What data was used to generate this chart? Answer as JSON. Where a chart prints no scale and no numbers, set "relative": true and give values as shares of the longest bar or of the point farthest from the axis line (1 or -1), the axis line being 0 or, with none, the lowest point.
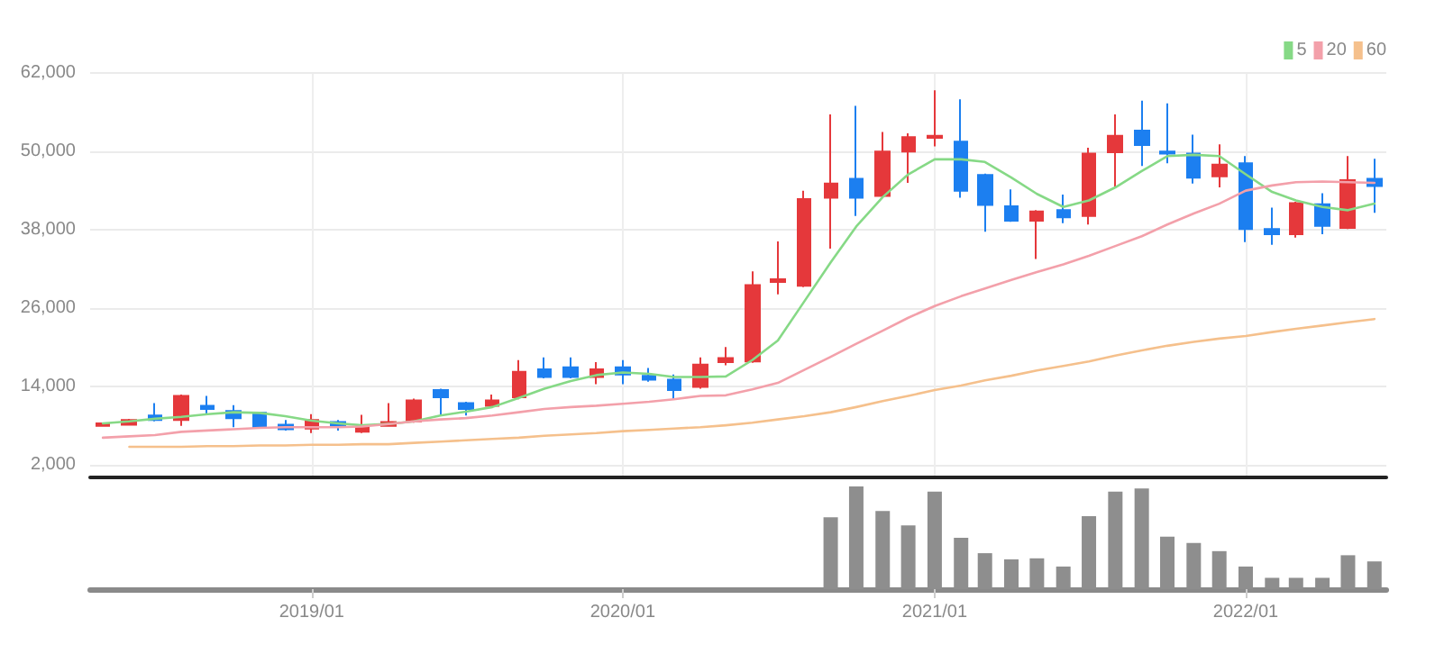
{
  "chart_data": [
    {
      "type": "candlestick",
      "x": [
        "2018-05",
        "2018-06",
        "2018-07",
        "2018-08",
        "2018-09",
        "2018-10",
        "2018-11",
        "2018-12",
        "2019-01",
        "2019-02",
        "2019-03",
        "2019-04",
        "2019-05",
        "2019-06",
        "2019-07",
        "2019-08",
        "2019-09",
        "2019-10",
        "2019-11",
        "2019-12",
        "2020-01",
        "2020-02",
        "2020-03",
        "2020-04",
        "2020-05",
        "2020-06",
        "2020-07",
        "2020-08",
        "2020-09",
        "2020-10",
        "2020-11",
        "2020-12",
        "2021-01",
        "2021-02",
        "2021-03",
        "2021-04",
        "2021-05",
        "2021-06",
        "2021-07",
        "2021-08",
        "2021-09",
        "2021-10",
        "2021-11",
        "2021-12",
        "2022-01",
        "2022-02",
        "2022-03",
        "2022-04",
        "2022-05",
        "2022-06"
      ],
      "ohlc": [
        [
          7900,
          8400,
          7800,
          8300
        ],
        [
          8100,
          9000,
          8000,
          8800
        ],
        [
          9500,
          11400,
          8600,
          8800
        ],
        [
          8800,
          12700,
          7900,
          12500
        ],
        [
          11000,
          12500,
          9700,
          10500
        ],
        [
          10200,
          11100,
          7700,
          9100
        ],
        [
          9900,
          10000,
          7600,
          7700
        ],
        [
          8100,
          8800,
          7200,
          7400
        ],
        [
          7500,
          9700,
          6800,
          8800
        ],
        [
          8500,
          8800,
          7200,
          7800
        ],
        [
          7000,
          9600,
          6800,
          7600
        ],
        [
          7900,
          11400,
          7800,
          8500
        ],
        [
          8600,
          12100,
          8400,
          11800
        ],
        [
          13400,
          13600,
          9500,
          12300
        ],
        [
          11400,
          11600,
          9500,
          10500
        ],
        [
          11000,
          12700,
          10800,
          11800
        ],
        [
          12300,
          18000,
          12000,
          16200
        ],
        [
          16600,
          18400,
          15200,
          15400
        ],
        [
          16900,
          18400,
          15200,
          15400
        ],
        [
          15400,
          17700,
          14300,
          16600
        ],
        [
          16900,
          18000,
          14300,
          15800
        ],
        [
          15600,
          16800,
          14700,
          15000
        ],
        [
          15000,
          15800,
          12000,
          13400
        ],
        [
          13900,
          18400,
          13600,
          17300
        ],
        [
          17700,
          20000,
          17200,
          18300
        ],
        [
          17800,
          31600,
          17600,
          29500
        ],
        [
          30000,
          36200,
          28100,
          30400
        ],
        [
          29400,
          44000,
          29200,
          42700
        ],
        [
          42900,
          55700,
          35100,
          45100
        ],
        [
          45800,
          57000,
          40100,
          42900
        ],
        [
          43200,
          53000,
          42900,
          50000
        ],
        [
          50000,
          52800,
          45200,
          52200
        ],
        [
          52100,
          59400,
          50800,
          52400
        ],
        [
          51500,
          58000,
          42900,
          44000
        ],
        [
          46400,
          46600,
          37700,
          41800
        ],
        [
          41600,
          44200,
          39200,
          39400
        ],
        [
          39400,
          41000,
          33500,
          40800
        ],
        [
          41000,
          43400,
          39000,
          39900
        ],
        [
          40100,
          50600,
          38800,
          49700
        ],
        [
          49900,
          55700,
          44500,
          52400
        ],
        [
          53200,
          57800,
          47800,
          51000
        ],
        [
          50000,
          57400,
          48200,
          49700
        ],
        [
          49700,
          52600,
          45100,
          46000
        ],
        [
          46200,
          51100,
          44500,
          48000
        ],
        [
          48200,
          49300,
          36100,
          38100
        ],
        [
          38100,
          41400,
          35700,
          37300
        ],
        [
          37300,
          42300,
          36800,
          42100
        ],
        [
          41900,
          43600,
          37300,
          38600
        ],
        [
          38300,
          49300,
          38100,
          45600
        ],
        [
          45800,
          48900,
          40600,
          44700
        ]
      ],
      "colors": [
        "#e5383b",
        "#e5383b",
        "#1c7ff0",
        "#e5383b",
        "#1c7ff0",
        "#1c7ff0",
        "#1c7ff0",
        "#1c7ff0",
        "#e5383b",
        "#1c7ff0",
        "#e5383b",
        "#e5383b",
        "#e5383b",
        "#1c7ff0",
        "#1c7ff0",
        "#e5383b",
        "#e5383b",
        "#1c7ff0",
        "#1c7ff0",
        "#e5383b",
        "#1c7ff0",
        "#1c7ff0",
        "#1c7ff0",
        "#e5383b",
        "#e5383b",
        "#e5383b",
        "#e5383b",
        "#e5383b",
        "#e5383b",
        "#1c7ff0",
        "#e5383b",
        "#e5383b",
        "#e5383b",
        "#1c7ff0",
        "#1c7ff0",
        "#1c7ff0",
        "#e5383b",
        "#1c7ff0",
        "#e5383b",
        "#e5383b",
        "#1c7ff0",
        "#1c7ff0",
        "#1c7ff0",
        "#e5383b",
        "#1c7ff0",
        "#1c7ff0",
        "#e5383b",
        "#1c7ff0",
        "#e5383b",
        "#1c7ff0"
      ],
      "series": [
        {
          "type": "line",
          "name": "5",
          "color": "#86d986",
          "values": [
            8300,
            8600,
            9000,
            9300,
            9700,
            10000,
            9900,
            9400,
            8700,
            8300,
            8000,
            8200,
            8600,
            9500,
            10100,
            10800,
            12200,
            13600,
            14800,
            15700,
            16100,
            15900,
            15400,
            15400,
            15500,
            18000,
            21000,
            27000,
            33000,
            38500,
            43000,
            46500,
            48800,
            48800,
            48400,
            46000,
            43500,
            41500,
            42500,
            44500,
            47000,
            49300,
            49500,
            49300,
            46500,
            43800,
            42500,
            41500,
            41000,
            42000
          ]
        },
        {
          "type": "line",
          "name": "20",
          "color": "#f3a0aa",
          "values": [
            6100,
            6300,
            6500,
            7000,
            7200,
            7400,
            7600,
            7700,
            7700,
            7700,
            7800,
            8200,
            8600,
            8900,
            9100,
            9500,
            10000,
            10500,
            10800,
            11000,
            11300,
            11600,
            12000,
            12500,
            12600,
            13500,
            14500,
            16500,
            18500,
            20500,
            22500,
            24500,
            26300,
            27800,
            29000,
            30300,
            31500,
            32700,
            34000,
            35500,
            37000,
            38800,
            40500,
            42000,
            44000,
            44800,
            45300,
            45400,
            45300,
            45200
          ]
        },
        {
          "type": "line",
          "name": "60",
          "color": "#f5c08c",
          "values": [
            null,
            4700,
            4700,
            4700,
            4800,
            4800,
            4900,
            4900,
            5000,
            5000,
            5100,
            5100,
            5300,
            5500,
            5700,
            5900,
            6100,
            6400,
            6600,
            6800,
            7100,
            7300,
            7500,
            7700,
            8000,
            8400,
            8900,
            9400,
            10000,
            10800,
            11700,
            12500,
            13400,
            14100,
            14900,
            15600,
            16400,
            17100,
            17800,
            18700,
            19500,
            20200,
            20800,
            21300,
            21700,
            22300,
            22800,
            23300,
            23800,
            24300
          ]
        }
      ],
      "xlim": [
        "2018-04-16",
        "2022-06-15"
      ],
      "ylim": [
        0,
        62000
      ],
      "yticks": [
        {
          "value": 2000,
          "label": "2,000"
        },
        {
          "value": 14000,
          "label": "14,000"
        },
        {
          "value": 26000,
          "label": "26,000"
        },
        {
          "value": 38000,
          "label": "38,000"
        },
        {
          "value": 50000,
          "label": "50,000"
        },
        {
          "value": 62000,
          "label": "62,000"
        }
      ],
      "xticks": [
        {
          "value": "2019-01",
          "label": null
        },
        {
          "value": "2020-01",
          "label": null
        },
        {
          "value": "2021-01",
          "label": null
        },
        {
          "value": "2022-01",
          "label": null
        }
      ],
      "tick_labels": "y",
      "grid": true,
      "legend": "top right",
      "marker": "none",
      "line_style": "solid"
    },
    {
      "type": "bar",
      "relative": true,
      "color": "#8e8e8e",
      "x": [
        "2020-09",
        "2020-10",
        "2020-11",
        "2020-12",
        "2021-01",
        "2021-02",
        "2021-03",
        "2021-04",
        "2021-05",
        "2021-06",
        "2021-07",
        "2021-08",
        "2021-09",
        "2021-10",
        "2021-11",
        "2021-12",
        "2022-01",
        "2022-02",
        "2022-03",
        "2022-04",
        "2022-05",
        "2022-06"
      ],
      "values": [
        0.7,
        1,
        0.76,
        0.62,
        0.95,
        0.5,
        0.35,
        0.29,
        0.3,
        0.22,
        0.71,
        0.95,
        0.98,
        0.51,
        0.45,
        0.37,
        0.22,
        0.11,
        0.11,
        0.11,
        0.33,
        0.27
      ],
      "xlim": [
        "2018-04-16",
        "2022-06-15"
      ],
      "xticks": [
        {
          "value": "2019-01",
          "label": "2019/01"
        },
        {
          "value": "2020-01",
          "label": "2020/01"
        },
        {
          "value": "2021-01",
          "label": "2021/01"
        },
        {
          "value": "2022-01",
          "label": "2022/01"
        }
      ],
      "tick_labels": "x",
      "grid": false,
      "legend": false
    }
  ]
}
